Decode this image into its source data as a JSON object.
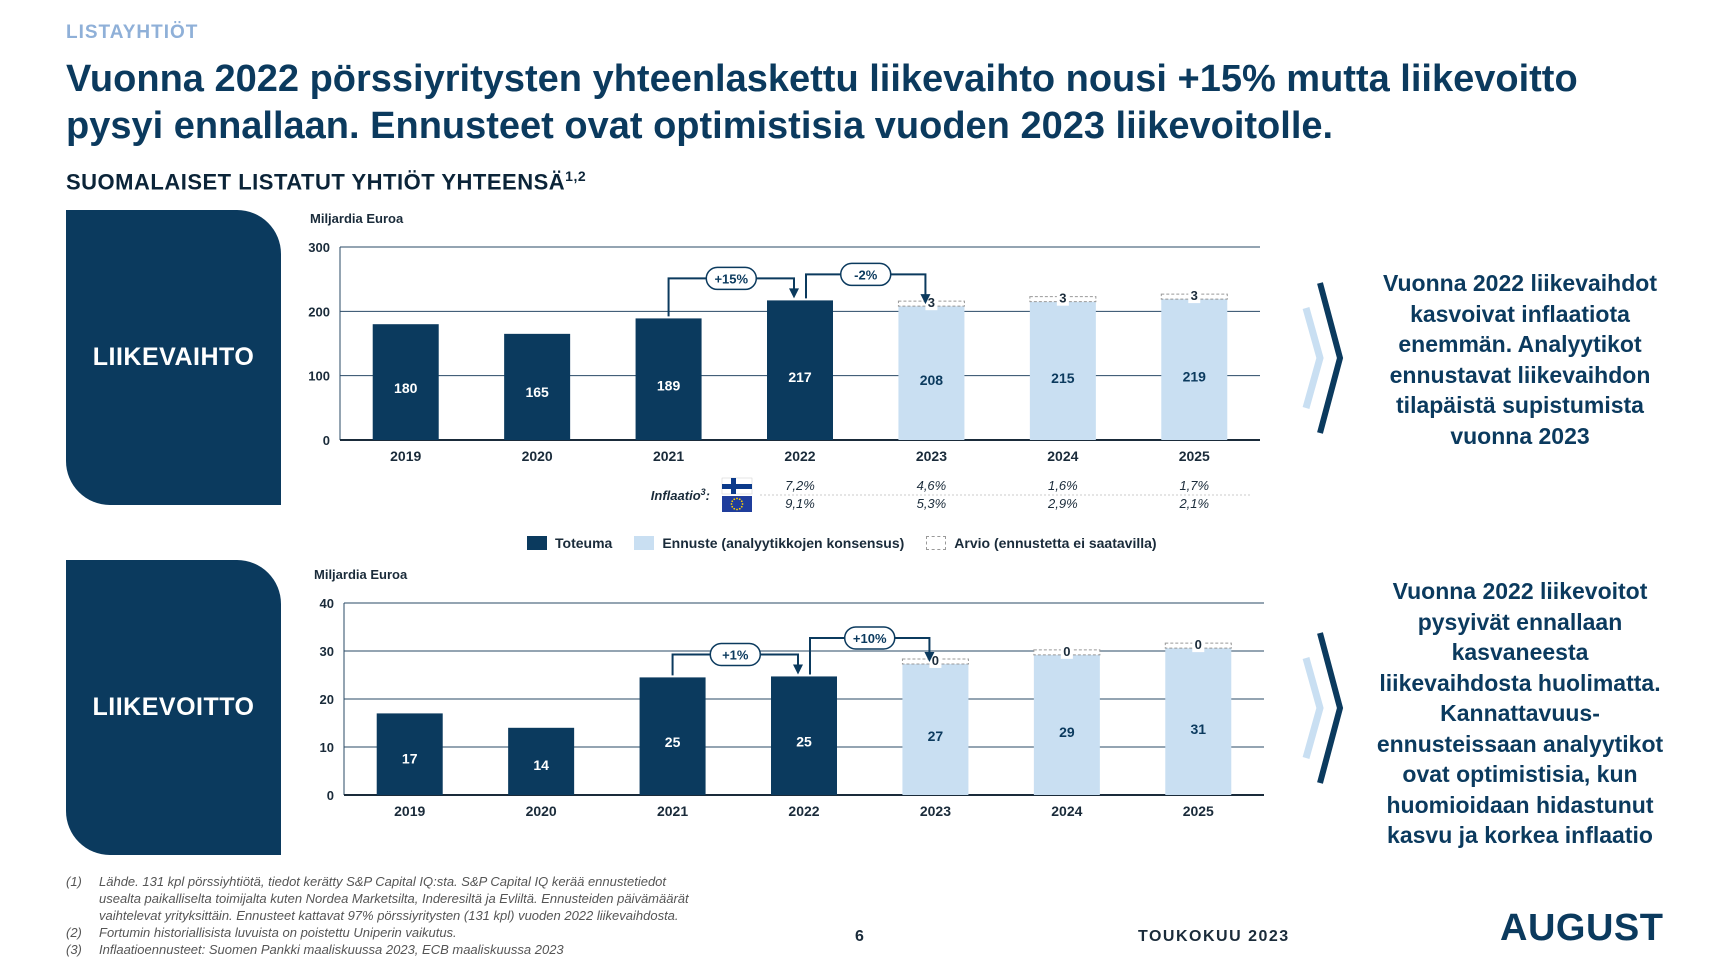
{
  "section_label": "LISTAYHTIÖT",
  "headline": "Vuonna 2022 pörssiyritysten yhteenlaskettu liikevaihto nousi +15% mutta liikevoitto pysyi ennallaan. Ennusteet ovat optimistisia vuoden 2023 liikevoitolle.",
  "subtitle": {
    "text": "SUOMALAISET LISTATUT YHTIÖT YHTEENSÄ",
    "superscript": "1,2"
  },
  "colors": {
    "actual": "#0b3a5e",
    "forecast": "#c9dff2",
    "estimate_border": "#999999",
    "accent_light": "#8fb0d8"
  },
  "chart_data": [
    {
      "type": "bar",
      "name_box": "LIIKEVAIHTO",
      "ylabel": "Miljardia Euroa",
      "ylim": [
        0,
        300
      ],
      "yticks": [
        0,
        100,
        200,
        300
      ],
      "categories": [
        "2019",
        "2020",
        "2021",
        "2022",
        "2023",
        "2024",
        "2025"
      ],
      "values": [
        180,
        165,
        189,
        217,
        208,
        215,
        219
      ],
      "value_labels": [
        "180",
        "165",
        "189",
        "217",
        "208",
        "215",
        "219"
      ],
      "kinds": [
        "actual",
        "actual",
        "actual",
        "actual",
        "forecast",
        "forecast",
        "forecast"
      ],
      "estimates": [
        null,
        null,
        null,
        null,
        3,
        3,
        3
      ],
      "changes": [
        {
          "from": 2,
          "to": 3,
          "label": "+15%"
        },
        {
          "from": 3,
          "to": 4,
          "label": "-2%"
        }
      ],
      "inflation": {
        "label": "Inflaatio",
        "superscript": "3",
        "rows": [
          {
            "flag": "finland-flag-icon",
            "values": [
              "7,2%",
              "4,6%",
              "1,6%",
              "1,7%"
            ]
          },
          {
            "flag": "eu-flag-icon",
            "values": [
              "9,1%",
              "5,3%",
              "2,9%",
              "2,1%"
            ]
          }
        ]
      }
    },
    {
      "type": "bar",
      "name_box": "LIIKEVOITTO",
      "ylabel": "Miljardia Euroa",
      "ylim": [
        0,
        40
      ],
      "yticks": [
        0,
        10,
        20,
        30,
        40
      ],
      "categories": [
        "2019",
        "2020",
        "2021",
        "2022",
        "2023",
        "2024",
        "2025"
      ],
      "values": [
        17,
        14,
        24.5,
        24.7,
        27.3,
        29.2,
        30.6
      ],
      "value_labels": [
        "17",
        "14",
        "25",
        "25",
        "27",
        "29",
        "31"
      ],
      "kinds": [
        "actual",
        "actual",
        "actual",
        "actual",
        "forecast",
        "forecast",
        "forecast"
      ],
      "estimates": [
        null,
        null,
        null,
        null,
        0,
        0,
        0
      ],
      "changes": [
        {
          "from": 2,
          "to": 3,
          "label": "+1%"
        },
        {
          "from": 3,
          "to": 4,
          "label": "+10%"
        }
      ]
    }
  ],
  "legend": {
    "actual": "Toteuma",
    "forecast": "Ennuste (analyytikkojen konsensus)",
    "estimate": "Arvio (ennustetta ei saatavilla)"
  },
  "callouts": {
    "revenue": [
      "Vuonna 2022 liikevaihdot",
      "kasvoivat inflaatiota",
      "enemmän. Analyytikot",
      "ennustavat liikevaihdon",
      "tilapäistä supistumista",
      "vuonna 2023"
    ],
    "profit": [
      "Vuonna 2022 liikevoitot",
      "pysyivät ennallaan",
      "kasvaneesta",
      "liikevaihdosta huolimatta.",
      "Kannattavuus-",
      "ennusteissaan analyytikot",
      "ovat optimistisia, kun",
      "huomioidaan hidastunut",
      "kasvu ja korkea inflaatio"
    ]
  },
  "footnotes": [
    {
      "num": "(1)",
      "lines": [
        "Lähde. 131 kpl pörssiyhtiötä, tiedot kerätty S&P Capital IQ:sta. S&P Capital IQ kerää ennustetiedot",
        "usealta paikalliselta toimijalta kuten Nordea Marketsilta, Inderesiltä ja Evliltä. Ennusteiden päivämäärät",
        "vaihtelevat yrityksittäin. Ennusteet kattavat 97% pörssiyritysten (131 kpl) vuoden 2022 liikevaihdosta."
      ]
    },
    {
      "num": "(2)",
      "lines": [
        "Fortumin historiallisista luvuista on poistettu Uniperin vaikutus."
      ]
    },
    {
      "num": "(3)",
      "lines": [
        "Inflaatioennusteet: Suomen Pankki maaliskuussa 2023, ECB maaliskuussa 2023"
      ]
    }
  ],
  "footer": {
    "page": "6",
    "date": "TOUKOKUU 2023",
    "logo": "AUGUST"
  }
}
